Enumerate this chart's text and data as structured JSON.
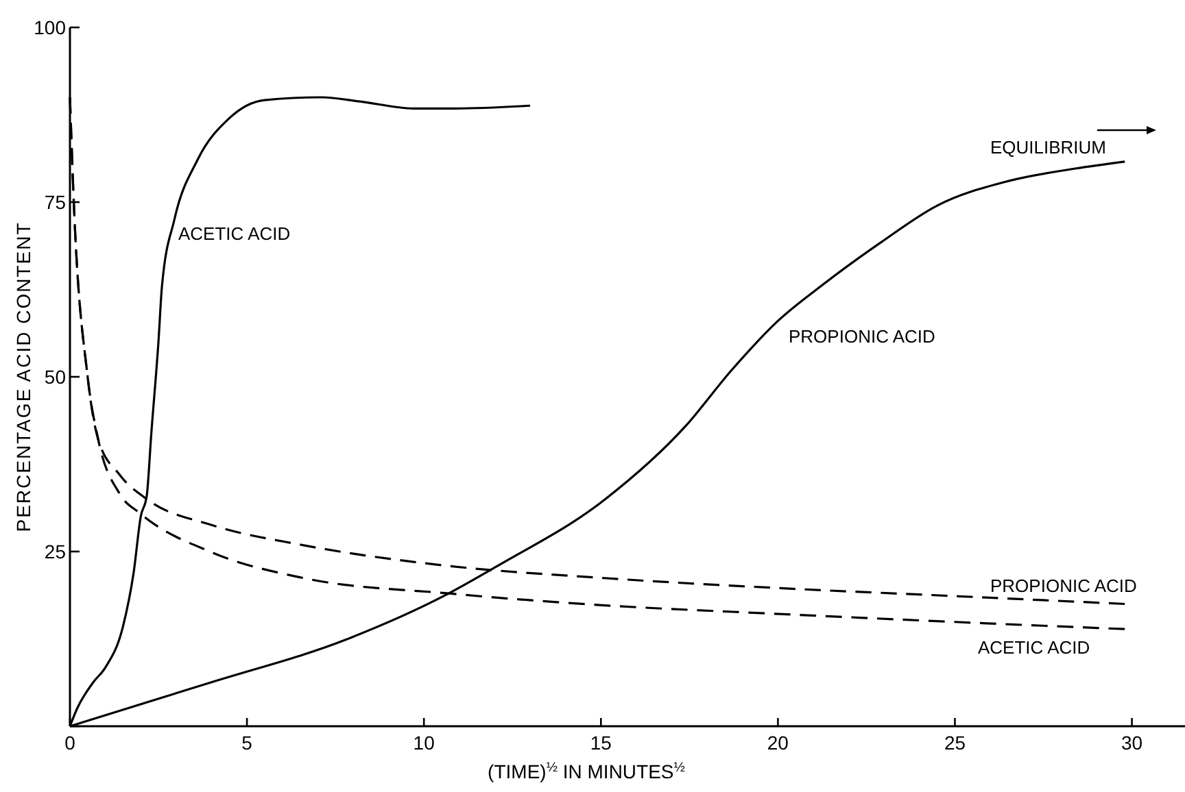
{
  "chart_data": {
    "type": "line",
    "xlabel": "(TIME)$^{½}$ IN MINUTES$^{½}$",
    "ylabel": "PERCENTAGE ACID CONTENT",
    "annotations": [
      "EQUILIBRIUM"
    ],
    "xlim": [
      0,
      31.5
    ],
    "xticks": [
      0,
      5,
      10,
      15,
      20,
      25,
      30
    ],
    "ylim": [
      0,
      100
    ],
    "yticks": [
      {
        "value": 0,
        "label": null
      },
      25,
      50,
      75,
      100
    ],
    "grid": false,
    "marker": "none",
    "series": [
      {
        "name": "ACETIC ACID",
        "color": "#000000",
        "line_style": "solid",
        "x": [
          0,
          0.2,
          0.66,
          1.0,
          1.5,
          1.8,
          2.0,
          2.17,
          2.3,
          2.5,
          2.6,
          2.95,
          3.6,
          4.5,
          5.5,
          7.1,
          8.2,
          9.7,
          10.9,
          13.0
        ],
        "values": [
          0,
          2.5,
          6.3,
          8.4,
          14.3,
          22,
          30,
          33,
          42,
          55,
          63,
          72.5,
          81,
          87,
          89.6,
          90,
          89.4,
          88.4,
          88.4,
          88.8
        ]
      },
      {
        "name": "PROPIONIC ACID",
        "color": "#000000",
        "line_style": "solid",
        "x": [
          0,
          4.0,
          7.8,
          10.7,
          12.1,
          15.1,
          17.4,
          18.7,
          20.0,
          21.3,
          22.9,
          24.5,
          26.5,
          28.4,
          29.8
        ],
        "values": [
          0,
          6.3,
          12.4,
          19,
          23,
          32.4,
          43,
          51,
          58,
          63.3,
          69.2,
          74.5,
          78,
          79.8,
          80.8
        ]
      },
      {
        "name": "PROPIONIC ACID",
        "color": "#000000",
        "line_style": "dashed",
        "x": [
          0,
          0.1,
          0.5,
          0.8,
          1.4,
          2.2,
          4.0,
          6.6,
          10.4,
          15.1,
          19.9,
          25.1,
          29.8
        ],
        "values": [
          90,
          76,
          50,
          41,
          36,
          32.4,
          28.8,
          25.9,
          23.1,
          21.2,
          19.8,
          18.6,
          17.5
        ]
      },
      {
        "name": "ACETIC ACID",
        "color": "#000000",
        "line_style": "dashed",
        "x": [
          0,
          0.1,
          0.5,
          0.8,
          1.4,
          2.0,
          4.0,
          6.6,
          10.7,
          15.1,
          19.9,
          25.1,
          29.8
        ],
        "values": [
          90,
          76,
          50,
          41,
          33.3,
          30.4,
          24.9,
          21.2,
          19,
          17.3,
          16.1,
          14.9,
          13.9
        ]
      }
    ]
  }
}
